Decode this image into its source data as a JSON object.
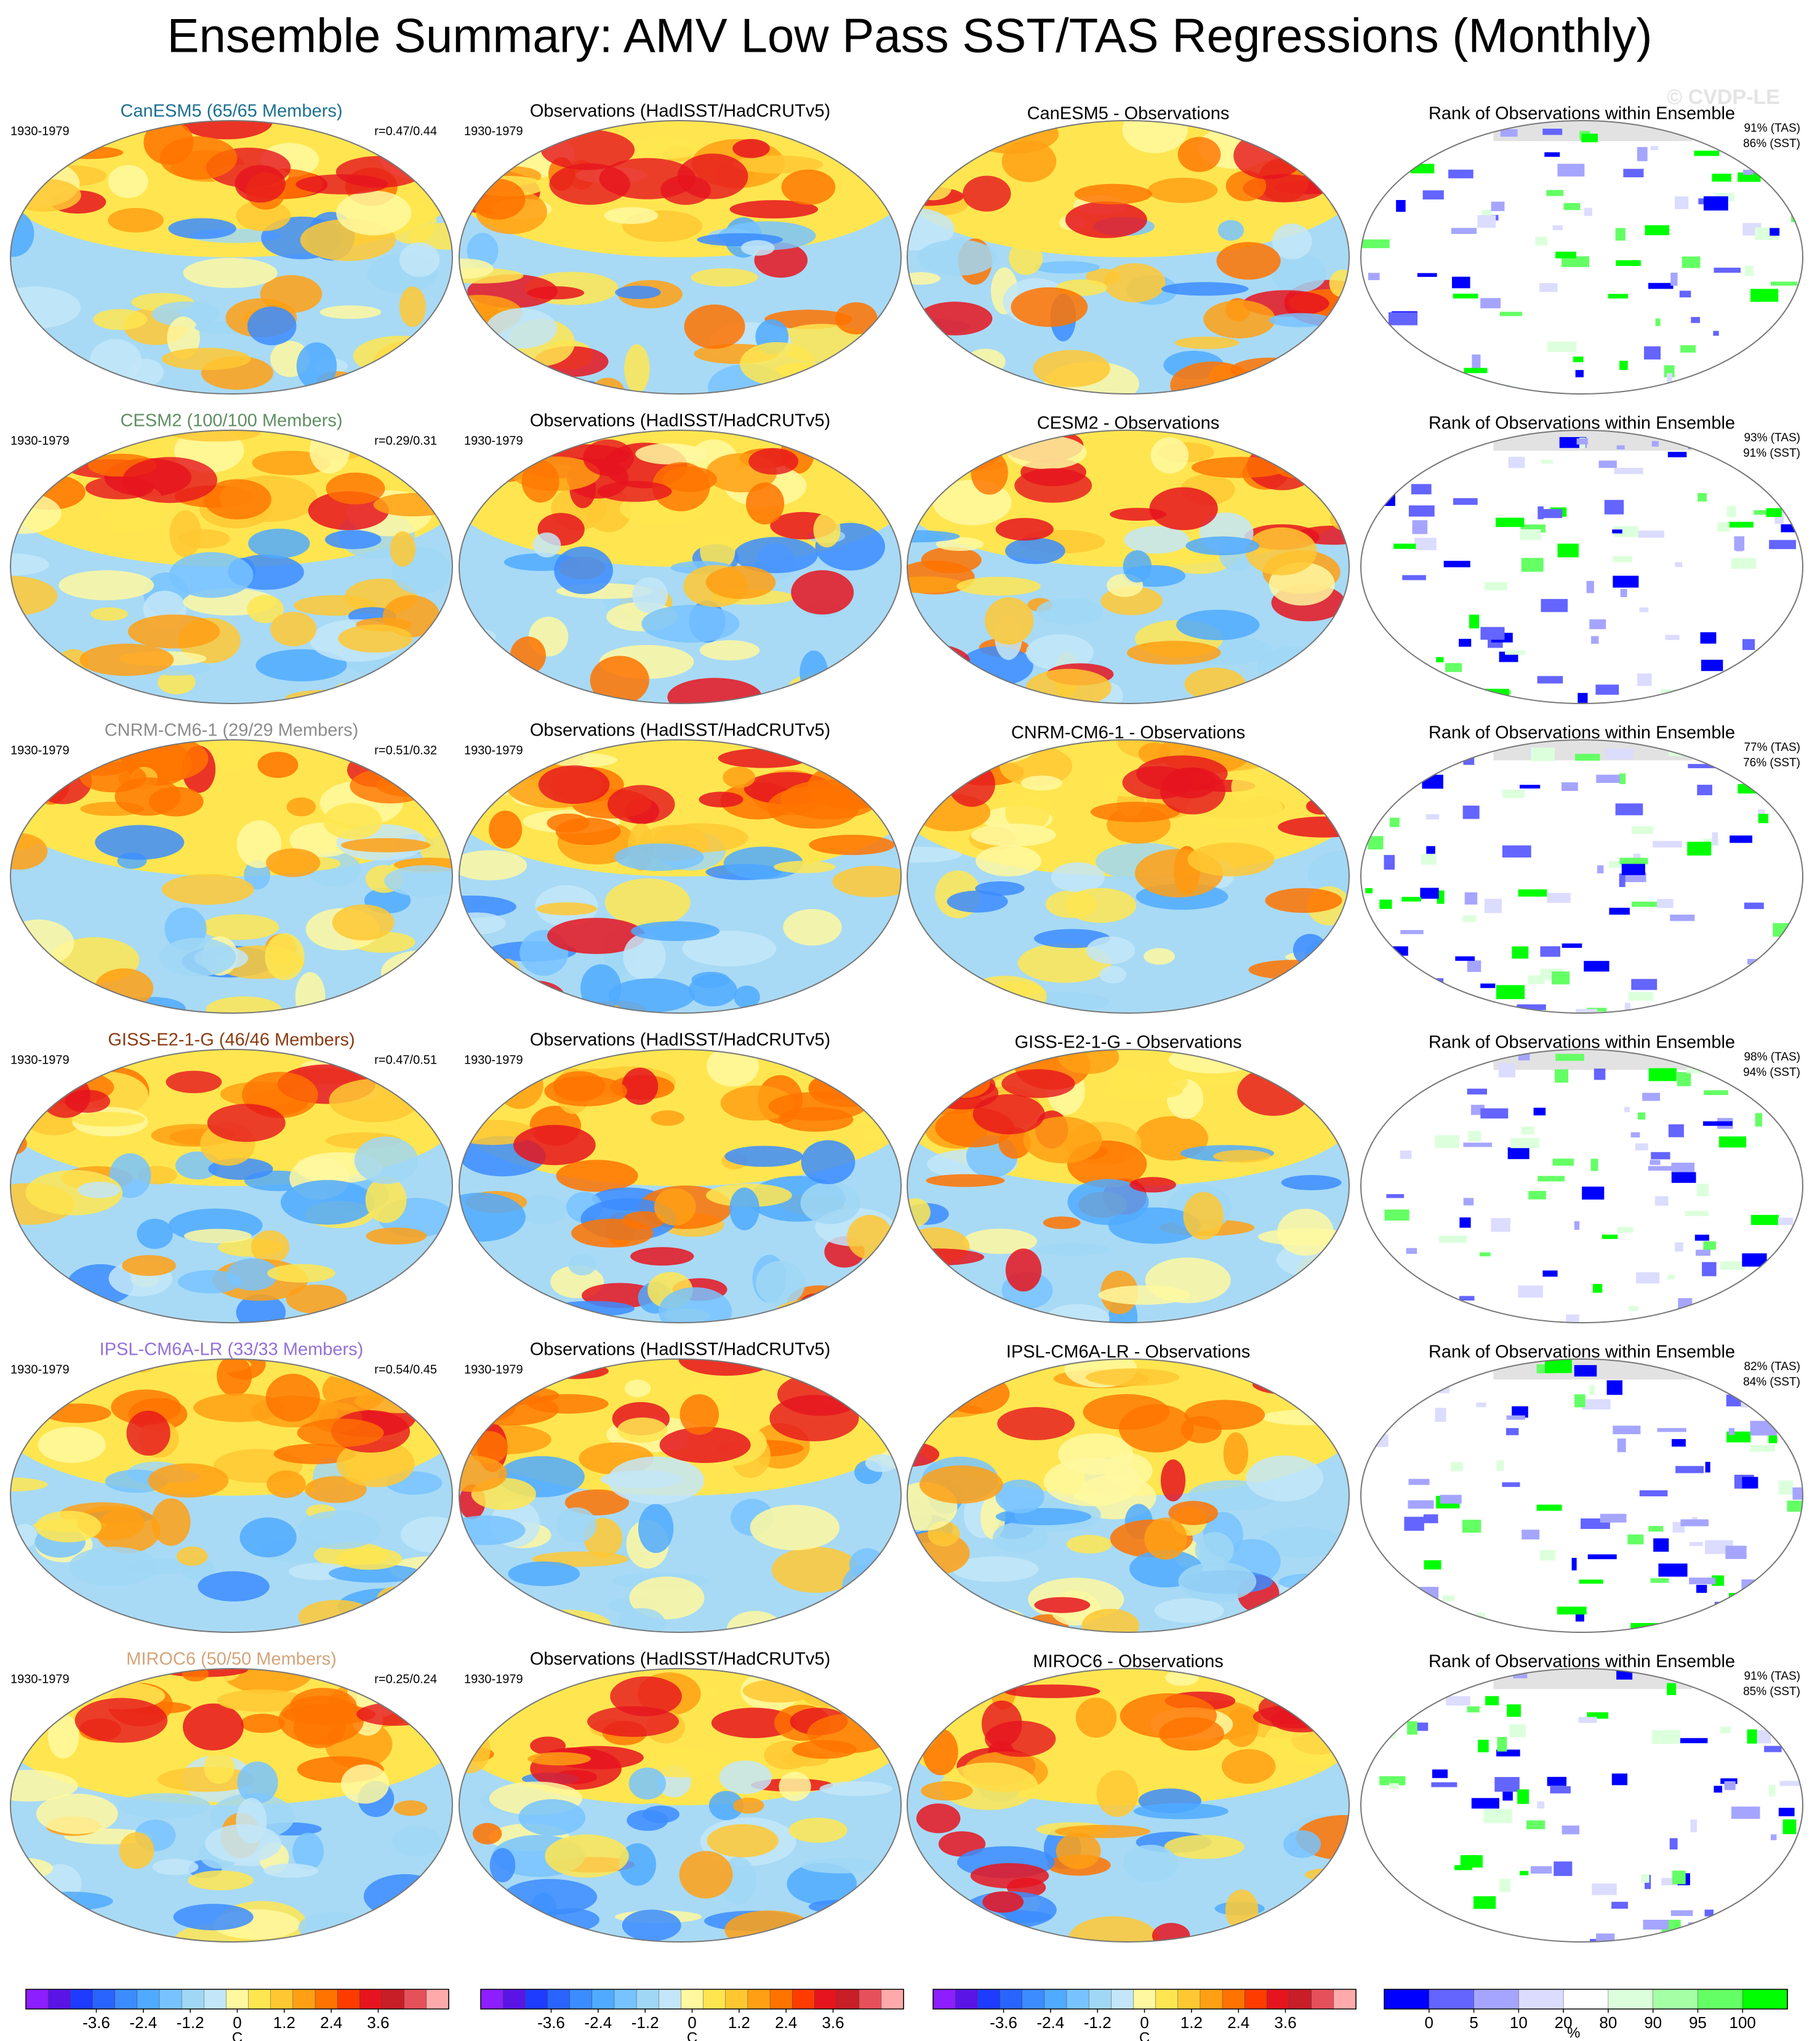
{
  "title": "Ensemble Summary: AMV Low Pass SST/TAS Regressions (Monthly)",
  "watermark": "© CVDP-LE",
  "rows": [
    {
      "model_label": "CanESM5 (65/65 Members)",
      "model_color": "#1b6f91",
      "period_model": "1930-1979",
      "r": "r=0.47/0.44",
      "obs_title": "Observations (HadISST/HadCRUTv5)",
      "period_obs": "1930-1979",
      "diff_title": "CanESM5 - Observations",
      "rank_title": "Rank of Observations within Ensemble",
      "rank_tas": "91% (TAS)",
      "rank_sst": "86% (SST)"
    },
    {
      "model_label": "CESM2 (100/100 Members)",
      "model_color": "#5f8f63",
      "period_model": "1930-1979",
      "r": "r=0.29/0.31",
      "obs_title": "Observations (HadISST/HadCRUTv5)",
      "period_obs": "1930-1979",
      "diff_title": "CESM2 - Observations",
      "rank_title": "Rank of Observations within Ensemble",
      "rank_tas": "93% (TAS)",
      "rank_sst": "91% (SST)"
    },
    {
      "model_label": "CNRM-CM6-1 (29/29 Members)",
      "model_color": "#8c8c8c",
      "period_model": "1930-1979",
      "r": "r=0.51/0.32",
      "obs_title": "Observations (HadISST/HadCRUTv5)",
      "period_obs": "1930-1979",
      "diff_title": "CNRM-CM6-1 - Observations",
      "rank_title": "Rank of Observations within Ensemble",
      "rank_tas": "77% (TAS)",
      "rank_sst": "76% (SST)"
    },
    {
      "model_label": "GISS-E2-1-G (46/46 Members)",
      "model_color": "#8b3a12",
      "period_model": "1930-1979",
      "r": "r=0.47/0.51",
      "obs_title": "Observations (HadISST/HadCRUTv5)",
      "period_obs": "1930-1979",
      "diff_title": "GISS-E2-1-G - Observations",
      "rank_title": "Rank of Observations within Ensemble",
      "rank_tas": "98% (TAS)",
      "rank_sst": "94% (SST)"
    },
    {
      "model_label": "IPSL-CM6A-LR (33/33 Members)",
      "model_color": "#9370d8",
      "period_model": "1930-1979",
      "r": "r=0.54/0.45",
      "obs_title": "Observations (HadISST/HadCRUTv5)",
      "period_obs": "1930-1979",
      "diff_title": "IPSL-CM6A-LR - Observations",
      "rank_title": "Rank of Observations within Ensemble",
      "rank_tas": "82% (TAS)",
      "rank_sst": "84% (SST)"
    },
    {
      "model_label": "MIROC6 (50/50 Members)",
      "model_color": "#d4a47a",
      "period_model": "1930-1979",
      "r": "r=0.25/0.24",
      "obs_title": "Observations (HadISST/HadCRUTv5)",
      "period_obs": "1930-1979",
      "diff_title": "MIROC6 - Observations",
      "rank_title": "Rank of Observations within Ensemble",
      "rank_tas": "91% (TAS)",
      "rank_sst": "85% (SST)"
    }
  ],
  "colorbars": [
    {
      "colors": [
        "#8c1eff",
        "#5a14e6",
        "#1e3cff",
        "#2a64ff",
        "#3c8cff",
        "#50aaff",
        "#78c3ff",
        "#a0d7f5",
        "#c3e6f8",
        "#fff8a0",
        "#ffe650",
        "#ffc832",
        "#ffa014",
        "#ff7300",
        "#ff3c00",
        "#e6141e",
        "#c81e28",
        "#e6505a",
        "#ffaaaa"
      ],
      "lim": [
        -5.4,
        5.4
      ],
      "ticks": [
        -3.6,
        -2.4,
        -1.2,
        0,
        1.2,
        2.4,
        3.6
      ],
      "unit": "C"
    },
    {
      "colors": [
        "#8c1eff",
        "#5a14e6",
        "#1e3cff",
        "#2a64ff",
        "#3c8cff",
        "#50aaff",
        "#78c3ff",
        "#a0d7f5",
        "#c3e6f8",
        "#fff8a0",
        "#ffe650",
        "#ffc832",
        "#ffa014",
        "#ff7300",
        "#ff3c00",
        "#e6141e",
        "#c81e28",
        "#e6505a",
        "#ffaaaa"
      ],
      "lim": [
        -5.4,
        5.4
      ],
      "ticks": [
        -3.6,
        -2.4,
        -1.2,
        0,
        1.2,
        2.4,
        3.6
      ],
      "unit": "C"
    },
    {
      "colors": [
        "#8c1eff",
        "#5a14e6",
        "#1e3cff",
        "#2a64ff",
        "#3c8cff",
        "#50aaff",
        "#78c3ff",
        "#a0d7f5",
        "#c3e6f8",
        "#fff8a0",
        "#ffe650",
        "#ffc832",
        "#ffa014",
        "#ff7300",
        "#ff3c00",
        "#e6141e",
        "#c81e28",
        "#e6505a",
        "#ffaaaa"
      ],
      "lim": [
        -5.4,
        5.4
      ],
      "ticks": [
        -3.6,
        -2.4,
        -1.2,
        0,
        1.2,
        2.4,
        3.6
      ],
      "unit": "C"
    },
    {
      "colors": [
        "#0000ff",
        "#6464ff",
        "#a5a5ff",
        "#dcdcff",
        "#ffffff",
        "#dcffdc",
        "#a5ffa5",
        "#64ff64",
        "#00ff00"
      ],
      "ticks": [
        0,
        5,
        10,
        20,
        80,
        90,
        95,
        100
      ],
      "unit": "%"
    }
  ]
}
